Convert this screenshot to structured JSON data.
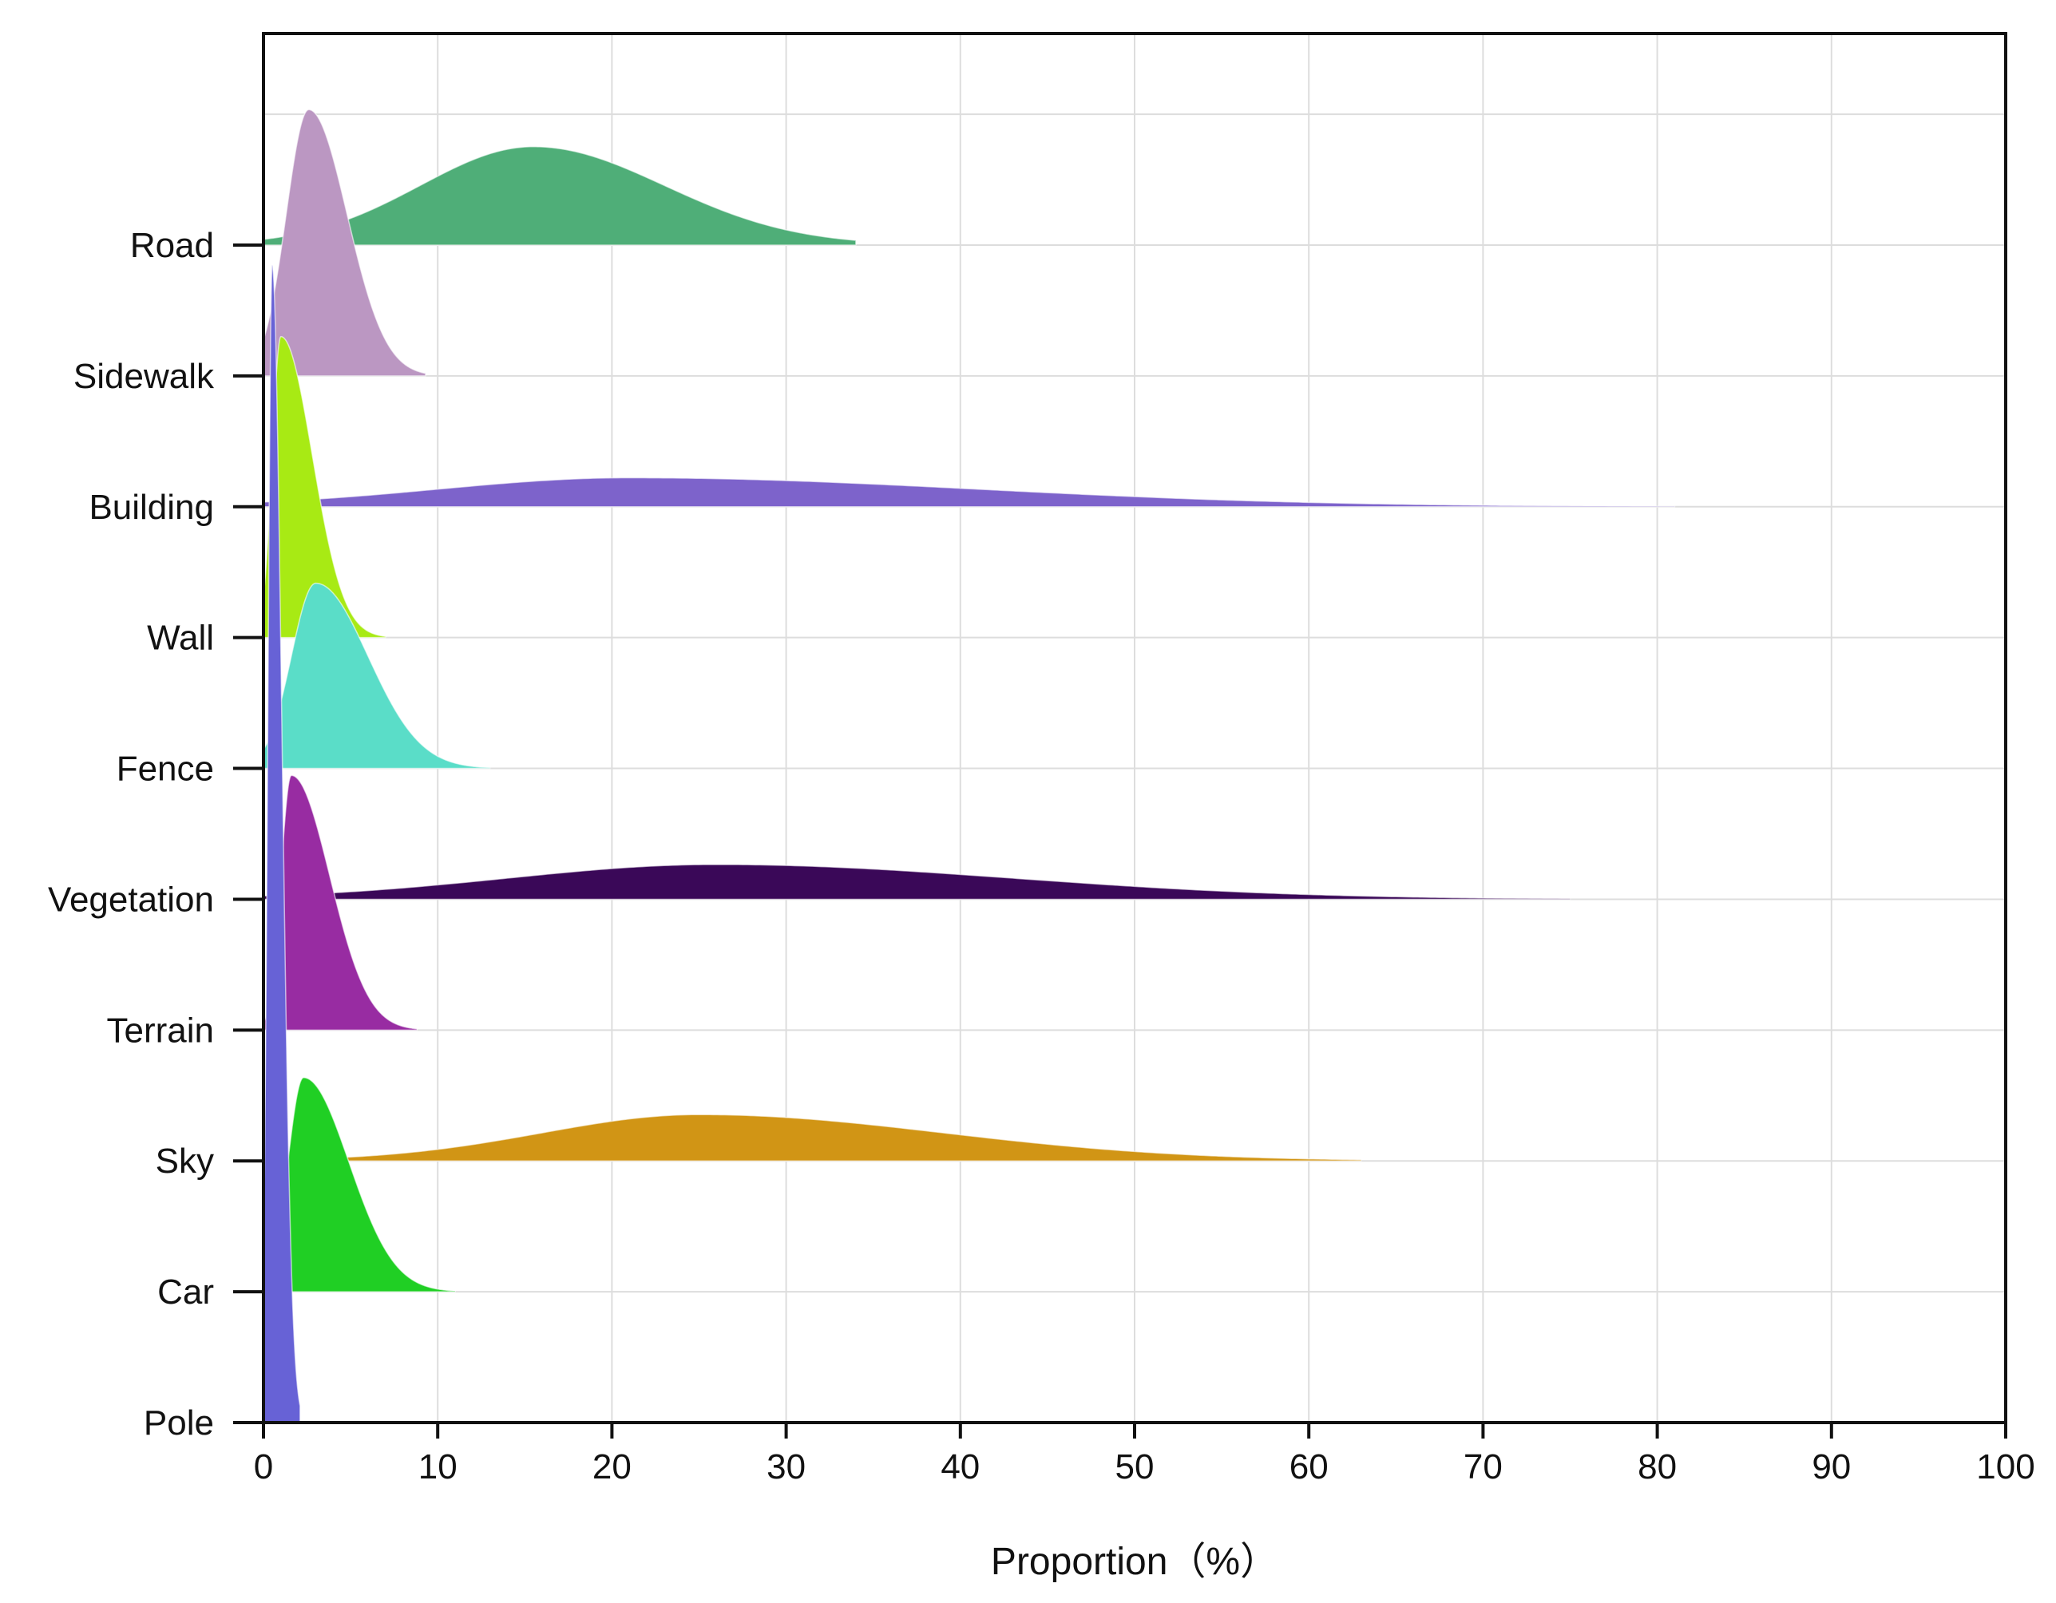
{
  "chart_data": {
    "type": "ridgeline",
    "title": "",
    "xlabel": "Proportion（%）",
    "ylabel": "",
    "xlim": [
      0,
      100
    ],
    "x_ticks": [
      0,
      10,
      20,
      30,
      40,
      50,
      60,
      70,
      80,
      90,
      100
    ],
    "grid": true,
    "categories": [
      "Road",
      "Sidewalk",
      "Building",
      "Wall",
      "Fence",
      "Vegetation",
      "Terrain",
      "Sky",
      "Car",
      "Pole"
    ],
    "series": [
      {
        "name": "Road",
        "peak_x": 15.5,
        "spread_left": 6.5,
        "spread_right": 7.5,
        "x_min": 0,
        "x_max": 34,
        "relative_height": 0.85,
        "color": "#4fae78"
      },
      {
        "name": "Sidewalk",
        "peak_x": 2.6,
        "spread_left": 1.3,
        "spread_right": 2.2,
        "x_min": 0,
        "x_max": 9.3,
        "relative_height": 2.3,
        "color": "#bb97c2"
      },
      {
        "name": "Building",
        "peak_x": 21,
        "spread_left": 11,
        "spread_right": 20,
        "x_min": 0,
        "x_max": 81,
        "relative_height": 0.25,
        "color": "#7d63cb"
      },
      {
        "name": "Wall",
        "peak_x": 1.0,
        "spread_left": 0.5,
        "spread_right": 1.8,
        "x_min": 0,
        "x_max": 7,
        "relative_height": 2.6,
        "color": "#a8ea14"
      },
      {
        "name": "Fence",
        "peak_x": 3.0,
        "spread_left": 1.4,
        "spread_right": 3.0,
        "x_min": 0,
        "x_max": 13,
        "relative_height": 1.6,
        "color": "#5addc8"
      },
      {
        "name": "Vegetation",
        "peak_x": 26,
        "spread_left": 12,
        "spread_right": 17,
        "x_min": 0,
        "x_max": 75,
        "relative_height": 0.3,
        "color": "#3a0858"
      },
      {
        "name": "Terrain",
        "peak_x": 1.6,
        "spread_left": 0.6,
        "spread_right": 2.2,
        "x_min": 0,
        "x_max": 8.8,
        "relative_height": 2.2,
        "color": "#982ca2"
      },
      {
        "name": "Sky",
        "peak_x": 25,
        "spread_left": 9,
        "spread_right": 14,
        "x_min": 0,
        "x_max": 63,
        "relative_height": 0.4,
        "color": "#d19515"
      },
      {
        "name": "Car",
        "peak_x": 2.3,
        "spread_left": 0.9,
        "spread_right": 2.6,
        "x_min": 0,
        "x_max": 11,
        "relative_height": 1.85,
        "color": "#20cf24"
      },
      {
        "name": "Pole",
        "peak_x": 0.5,
        "spread_left": 0.25,
        "spread_right": 0.55,
        "x_min": 0,
        "x_max": 2.1,
        "relative_height": 10.0,
        "color": "#6762d6"
      }
    ],
    "draw_order": [
      "Road",
      "Building",
      "Vegetation",
      "Sky",
      "Sidewalk",
      "Wall",
      "Fence",
      "Terrain",
      "Car",
      "Pole"
    ]
  }
}
